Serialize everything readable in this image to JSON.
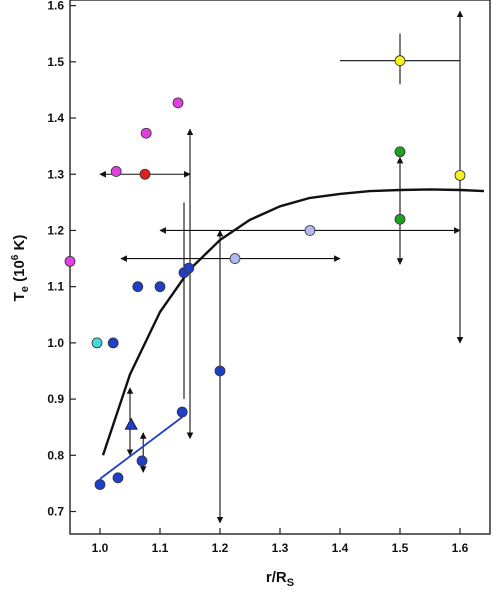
{
  "chart_data": {
    "type": "scatter",
    "xlabel": {
      "main": "r/R",
      "sub": "S"
    },
    "ylabel": {
      "main": "T",
      "sub": "e",
      "unit_prefix": " (10",
      "unit_exp": "6",
      "unit_suffix": " K)"
    },
    "xlim": [
      0.95,
      1.65
    ],
    "ylim": [
      0.66,
      1.61
    ],
    "x_ticks": [
      "1.0",
      "1.1",
      "1.2",
      "1.3",
      "1.4",
      "1.5",
      "1.6"
    ],
    "x_tick_values": [
      1.0,
      1.1,
      1.2,
      1.3,
      1.4,
      1.5,
      1.6
    ],
    "y_ticks": [
      "0.7",
      "0.8",
      "0.9",
      "1.0",
      "1.1",
      "1.2",
      "1.3",
      "1.4",
      "1.5",
      "1.6"
    ],
    "y_tick_values": [
      0.7,
      0.8,
      0.9,
      1.0,
      1.1,
      1.2,
      1.3,
      1.4,
      1.5,
      1.6
    ],
    "grid": false,
    "legend": "none",
    "points": [
      {
        "x": 0.95,
        "y": 1.145,
        "color": "#e040e0",
        "marker": "circle"
      },
      {
        "x": 1.027,
        "y": 1.305,
        "color": "#e040e0",
        "marker": "circle"
      },
      {
        "x": 1.077,
        "y": 1.373,
        "color": "#e040e0",
        "marker": "circle"
      },
      {
        "x": 1.13,
        "y": 1.427,
        "color": "#e040e0",
        "marker": "circle"
      },
      {
        "x": 1.075,
        "y": 1.3,
        "color": "#e02020",
        "marker": "circle"
      },
      {
        "x": 0.995,
        "y": 1.0,
        "color": "#40d8d8",
        "marker": "circle"
      },
      {
        "x": 1.022,
        "y": 1.0,
        "color": "#1f3fc8",
        "marker": "circle"
      },
      {
        "x": 1.063,
        "y": 1.1,
        "color": "#1f3fc8",
        "marker": "circle"
      },
      {
        "x": 1.1,
        "y": 1.1,
        "color": "#1f3fc8",
        "marker": "circle"
      },
      {
        "x": 1.14,
        "y": 1.125,
        "color": "#1f3fc8",
        "marker": "circle"
      },
      {
        "x": 1.148,
        "y": 1.133,
        "color": "#1f3fc8",
        "marker": "circle"
      },
      {
        "x": 1.2,
        "y": 0.95,
        "color": "#1f3fc8",
        "marker": "circle"
      },
      {
        "x": 1.0,
        "y": 0.748,
        "color": "#1f3fc8",
        "marker": "circle"
      },
      {
        "x": 1.03,
        "y": 0.76,
        "color": "#1f3fc8",
        "marker": "circle"
      },
      {
        "x": 1.07,
        "y": 0.79,
        "color": "#1f3fc8",
        "marker": "circle"
      },
      {
        "x": 1.137,
        "y": 0.877,
        "color": "#1f3fc8",
        "marker": "circle"
      },
      {
        "x": 1.052,
        "y": 0.855,
        "color": "#1f3fc8",
        "marker": "triangle"
      },
      {
        "x": 1.225,
        "y": 1.15,
        "color": "#b0b8f0",
        "marker": "circle"
      },
      {
        "x": 1.35,
        "y": 1.2,
        "color": "#b0b8f0",
        "marker": "circle"
      },
      {
        "x": 1.5,
        "y": 1.34,
        "color": "#20a020",
        "marker": "circle"
      },
      {
        "x": 1.5,
        "y": 1.22,
        "color": "#20a020",
        "marker": "circle"
      },
      {
        "x": 1.5,
        "y": 1.502,
        "color": "#f5f020",
        "marker": "circle"
      },
      {
        "x": 1.6,
        "y": 1.298,
        "color": "#f5f020",
        "marker": "circle"
      }
    ],
    "error_bars": [
      {
        "orient": "h",
        "y": 1.3,
        "from": 1.0,
        "to": 1.15,
        "style": "arrows"
      },
      {
        "orient": "h",
        "y": 1.2,
        "from": 1.1,
        "to": 1.6,
        "style": "arrows"
      },
      {
        "orient": "h",
        "y": 1.15,
        "from": 1.035,
        "to": 1.4,
        "style": "arrows"
      },
      {
        "orient": "h",
        "y": 1.502,
        "from": 1.4,
        "to": 1.6,
        "style": "plain"
      },
      {
        "orient": "v",
        "x": 1.15,
        "from": 0.83,
        "to": 1.38,
        "style": "arrows"
      },
      {
        "orient": "v",
        "x": 1.14,
        "from": 0.9,
        "to": 1.25,
        "style": "plain"
      },
      {
        "orient": "v",
        "x": 1.2,
        "from": 0.68,
        "to": 1.2,
        "style": "arrows"
      },
      {
        "orient": "v",
        "x": 1.05,
        "from": 0.8,
        "to": 0.92,
        "style": "arrows"
      },
      {
        "orient": "v",
        "x": 1.072,
        "from": 0.77,
        "to": 0.84,
        "style": "arrows"
      },
      {
        "orient": "v",
        "x": 1.5,
        "from": 1.14,
        "to": 1.33,
        "style": "arrows"
      },
      {
        "orient": "v",
        "x": 1.5,
        "from": 1.46,
        "to": 1.55,
        "style": "plain"
      },
      {
        "orient": "v",
        "x": 1.6,
        "from": 1.0,
        "to": 1.59,
        "style": "arrows"
      }
    ],
    "curves": [
      {
        "color": "#111111",
        "width": 2.4,
        "x": [
          1.005,
          1.05,
          1.1,
          1.15,
          1.2,
          1.25,
          1.3,
          1.35,
          1.4,
          1.45,
          1.5,
          1.55,
          1.6,
          1.64
        ],
        "y": [
          0.8,
          0.944,
          1.055,
          1.131,
          1.183,
          1.219,
          1.243,
          1.258,
          1.265,
          1.27,
          1.272,
          1.273,
          1.272,
          1.27
        ]
      },
      {
        "color": "#1f3fc8",
        "width": 1.8,
        "x": [
          1.0,
          1.137
        ],
        "y": [
          0.758,
          0.868
        ]
      }
    ]
  }
}
